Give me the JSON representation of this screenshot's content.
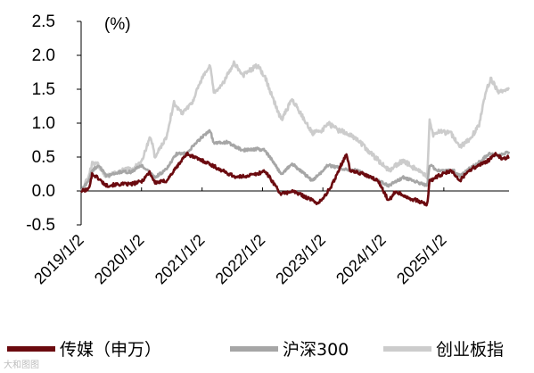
{
  "chart_data": {
    "type": "line",
    "unit_label": "(%)",
    "ylim": [
      -0.5,
      2.5
    ],
    "yticks": [
      "-0.5",
      "0.0",
      "0.5",
      "1.0",
      "1.5",
      "2.0",
      "2.5"
    ],
    "x_range": [
      "2019/1/2",
      "2026/1/31"
    ],
    "xticks": [
      "2019/1/2",
      "2020/1/2",
      "2021/1/2",
      "2022/1/2",
      "2023/1/2",
      "2024/1/2",
      "2025/1/2"
    ],
    "grid": false,
    "legend_position": "bottom",
    "series": [
      {
        "name": "传媒（申万）",
        "color": "#6b0a0f",
        "points": [
          [
            "2019/1/2",
            0.0
          ],
          [
            "2019/2/15",
            0.02
          ],
          [
            "2019/3/10",
            0.25
          ],
          [
            "2019/4/10",
            0.2
          ],
          [
            "2019/6/1",
            0.08
          ],
          [
            "2019/9/1",
            0.1
          ],
          [
            "2019/11/1",
            0.1
          ],
          [
            "2020/1/2",
            0.14
          ],
          [
            "2020/2/20",
            0.28
          ],
          [
            "2020/3/23",
            0.12
          ],
          [
            "2020/6/1",
            0.15
          ],
          [
            "2020/8/1",
            0.35
          ],
          [
            "2020/10/1",
            0.55
          ],
          [
            "2020/12/1",
            0.48
          ],
          [
            "2021/2/1",
            0.42
          ],
          [
            "2021/5/1",
            0.3
          ],
          [
            "2021/8/1",
            0.2
          ],
          [
            "2021/12/1",
            0.25
          ],
          [
            "2022/1/15",
            0.3
          ],
          [
            "2022/3/1",
            0.15
          ],
          [
            "2022/4/25",
            -0.05
          ],
          [
            "2022/7/1",
            0.0
          ],
          [
            "2022/10/1",
            -0.1
          ],
          [
            "2022/12/1",
            -0.18
          ],
          [
            "2023/1/2",
            -0.12
          ],
          [
            "2023/3/1",
            0.1
          ],
          [
            "2023/4/15",
            0.35
          ],
          [
            "2023/5/25",
            0.55
          ],
          [
            "2023/6/15",
            0.3
          ],
          [
            "2023/9/1",
            0.25
          ],
          [
            "2023/12/1",
            0.15
          ],
          [
            "2024/2/5",
            -0.15
          ],
          [
            "2024/3/15",
            0.0
          ],
          [
            "2024/6/1",
            -0.1
          ],
          [
            "2024/8/1",
            -0.15
          ],
          [
            "2024/9/24",
            -0.2
          ],
          [
            "2024/10/8",
            0.15
          ],
          [
            "2024/12/1",
            0.22
          ],
          [
            "2025/2/15",
            0.3
          ],
          [
            "2025/4/8",
            0.15
          ],
          [
            "2025/6/1",
            0.3
          ],
          [
            "2025/8/1",
            0.38
          ],
          [
            "2025/10/1",
            0.45
          ],
          [
            "2025/11/15",
            0.55
          ],
          [
            "2025/12/15",
            0.48
          ],
          [
            "2026/1/31",
            0.5
          ]
        ]
      },
      {
        "name": "沪深300",
        "color": "#a6a6a6",
        "points": [
          [
            "2019/1/2",
            0.0
          ],
          [
            "2019/2/15",
            0.15
          ],
          [
            "2019/3/10",
            0.3
          ],
          [
            "2019/4/20",
            0.38
          ],
          [
            "2019/6/1",
            0.22
          ],
          [
            "2019/9/1",
            0.28
          ],
          [
            "2019/11/1",
            0.28
          ],
          [
            "2020/1/2",
            0.38
          ],
          [
            "2020/3/23",
            0.2
          ],
          [
            "2020/6/1",
            0.32
          ],
          [
            "2020/8/1",
            0.55
          ],
          [
            "2020/10/1",
            0.55
          ],
          [
            "2020/12/1",
            0.72
          ],
          [
            "2021/2/18",
            0.9
          ],
          [
            "2021/3/15",
            0.7
          ],
          [
            "2021/6/1",
            0.72
          ],
          [
            "2021/9/1",
            0.6
          ],
          [
            "2021/12/1",
            0.62
          ],
          [
            "2022/1/15",
            0.6
          ],
          [
            "2022/3/1",
            0.45
          ],
          [
            "2022/4/25",
            0.25
          ],
          [
            "2022/7/1",
            0.4
          ],
          [
            "2022/10/31",
            0.15
          ],
          [
            "2023/1/2",
            0.3
          ],
          [
            "2023/2/1",
            0.38
          ],
          [
            "2023/5/1",
            0.33
          ],
          [
            "2023/8/1",
            0.3
          ],
          [
            "2023/10/1",
            0.22
          ],
          [
            "2024/2/5",
            0.08
          ],
          [
            "2024/5/1",
            0.2
          ],
          [
            "2024/9/24",
            0.08
          ],
          [
            "2024/10/8",
            0.38
          ],
          [
            "2024/12/1",
            0.3
          ],
          [
            "2025/3/1",
            0.3
          ],
          [
            "2025/4/8",
            0.22
          ],
          [
            "2025/6/1",
            0.32
          ],
          [
            "2025/8/1",
            0.42
          ],
          [
            "2025/10/1",
            0.55
          ],
          [
            "2025/12/1",
            0.52
          ],
          [
            "2026/1/31",
            0.58
          ]
        ]
      },
      {
        "name": "创业板指",
        "color": "#cccccc",
        "points": [
          [
            "2019/1/2",
            0.0
          ],
          [
            "2019/2/15",
            0.2
          ],
          [
            "2019/3/10",
            0.4
          ],
          [
            "2019/4/10",
            0.4
          ],
          [
            "2019/6/1",
            0.22
          ],
          [
            "2019/9/1",
            0.3
          ],
          [
            "2019/11/1",
            0.32
          ],
          [
            "2020/1/2",
            0.42
          ],
          [
            "2020/2/25",
            0.82
          ],
          [
            "2020/3/23",
            0.5
          ],
          [
            "2020/6/1",
            0.8
          ],
          [
            "2020/7/15",
            1.3
          ],
          [
            "2020/9/1",
            1.15
          ],
          [
            "2020/11/1",
            1.3
          ],
          [
            "2020/12/31",
            1.65
          ],
          [
            "2021/2/18",
            1.85
          ],
          [
            "2021/3/15",
            1.45
          ],
          [
            "2021/5/1",
            1.55
          ],
          [
            "2021/7/15",
            1.9
          ],
          [
            "2021/9/1",
            1.7
          ],
          [
            "2021/12/1",
            1.85
          ],
          [
            "2022/1/15",
            1.7
          ],
          [
            "2022/3/1",
            1.4
          ],
          [
            "2022/4/25",
            1.05
          ],
          [
            "2022/7/1",
            1.35
          ],
          [
            "2022/10/31",
            0.85
          ],
          [
            "2023/1/2",
            0.9
          ],
          [
            "2023/2/1",
            1.0
          ],
          [
            "2023/4/1",
            0.9
          ],
          [
            "2023/6/1",
            0.85
          ],
          [
            "2023/8/1",
            0.75
          ],
          [
            "2023/10/1",
            0.6
          ],
          [
            "2024/2/5",
            0.3
          ],
          [
            "2024/5/1",
            0.45
          ],
          [
            "2024/9/24",
            0.2
          ],
          [
            "2024/10/8",
            1.05
          ],
          [
            "2024/10/30",
            0.82
          ],
          [
            "2024/12/1",
            0.88
          ],
          [
            "2025/2/15",
            0.85
          ],
          [
            "2025/4/8",
            0.65
          ],
          [
            "2025/6/1",
            0.75
          ],
          [
            "2025/8/1",
            0.95
          ],
          [
            "2025/9/15",
            1.5
          ],
          [
            "2025/10/15",
            1.65
          ],
          [
            "2025/12/1",
            1.45
          ],
          [
            "2026/1/31",
            1.5
          ]
        ]
      }
    ]
  },
  "watermark": "大和图图"
}
